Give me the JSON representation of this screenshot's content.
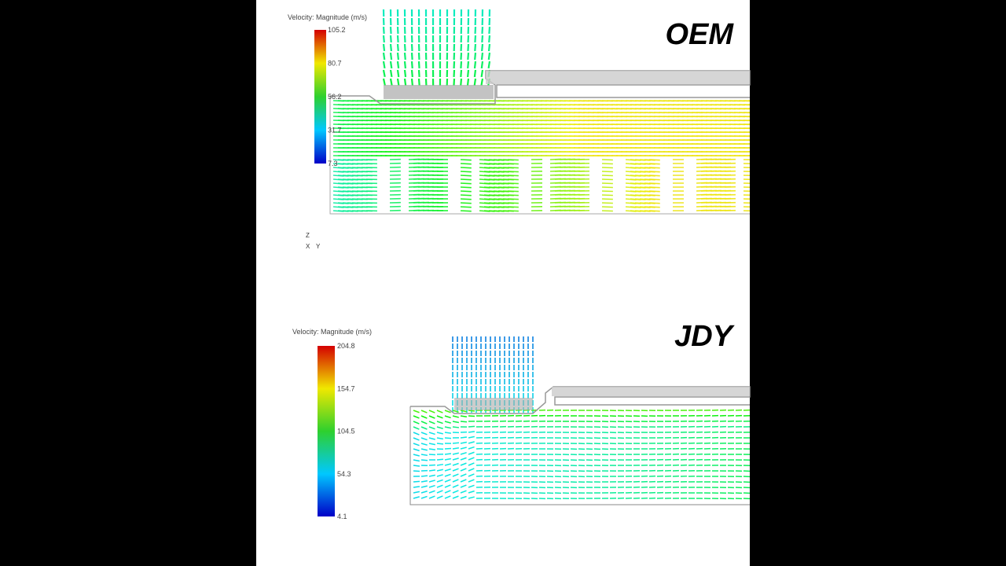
{
  "panels": [
    {
      "label": "OEM",
      "legend": {
        "title": "Velocity: Magnitude (m/s)",
        "ticks": [
          "105.2",
          "80.7",
          "56.2",
          "31.7",
          "7.3"
        ]
      },
      "triad": [
        "Z",
        "X",
        "Y"
      ]
    },
    {
      "label": "JDY",
      "legend": {
        "title": "Velocity: Magnitude (m/s)",
        "ticks": [
          "204.8",
          "154.7",
          "104.5",
          "54.3",
          "4.1"
        ]
      }
    }
  ]
}
